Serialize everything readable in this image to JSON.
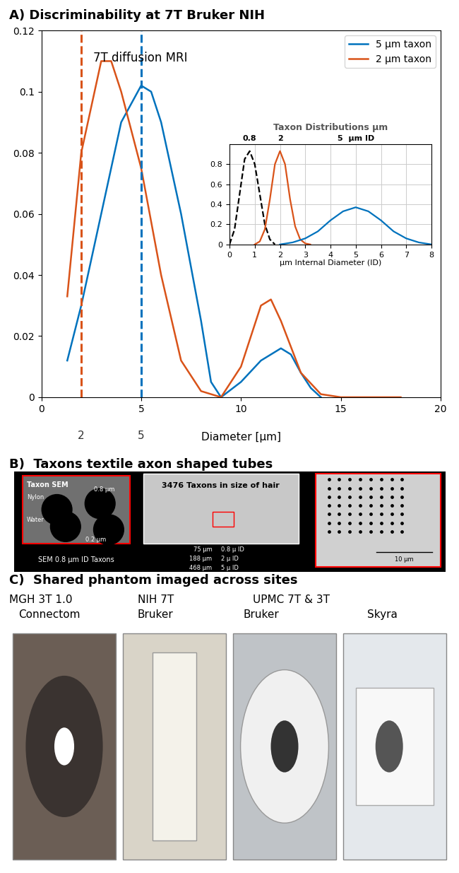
{
  "chart_data": [
    {
      "type": "line",
      "title": "A) Discriminability at 7T Bruker NIH",
      "annotation": "7T diffusion MRI",
      "x_label": "Diameter [μm]",
      "xlim": [
        0,
        20
      ],
      "ylim": [
        0,
        0.12
      ],
      "xticks": [
        0,
        5,
        10,
        15,
        20
      ],
      "yticks": [
        0,
        0.02,
        0.04,
        0.06,
        0.08,
        0.1,
        0.12
      ],
      "legend": "upper right",
      "reference_lines": [
        {
          "x": 2,
          "label": "2",
          "color": "#d95319"
        },
        {
          "x": 5,
          "label": "5",
          "color": "#0072bd"
        }
      ],
      "series": [
        {
          "name": "5 μm taxon",
          "color": "#0072bd",
          "x": [
            1.3,
            2,
            3,
            4,
            5,
            5.5,
            6,
            7,
            8,
            8.5,
            9,
            10,
            11,
            12,
            12.5,
            13,
            13.5,
            14
          ],
          "values": [
            0.012,
            0.03,
            0.06,
            0.09,
            0.102,
            0.1,
            0.09,
            0.06,
            0.025,
            0.005,
            0,
            0.005,
            0.012,
            0.016,
            0.014,
            0.008,
            0.003,
            0
          ]
        },
        {
          "name": "2 μm taxon",
          "color": "#d95319",
          "x": [
            1.3,
            2,
            2.5,
            3,
            3.5,
            4,
            5,
            6,
            7,
            8,
            9,
            10,
            11,
            11.5,
            12,
            13,
            14,
            15,
            18
          ],
          "values": [
            0.033,
            0.08,
            0.095,
            0.11,
            0.11,
            0.1,
            0.075,
            0.04,
            0.012,
            0.002,
            0,
            0.01,
            0.03,
            0.032,
            0.025,
            0.008,
            0.001,
            0,
            0
          ]
        }
      ]
    },
    {
      "type": "line",
      "title": "Taxon Distributions μm",
      "x_label": "μm Internal Diameter (ID)",
      "xlim": [
        0,
        8
      ],
      "ylim": [
        0,
        1
      ],
      "xticks": [
        0,
        1,
        2,
        3,
        4,
        5,
        6,
        7,
        8
      ],
      "yticks": [
        0,
        0.2,
        0.4,
        0.6,
        0.8
      ],
      "grid": true,
      "peak_labels": [
        {
          "x": 0.8,
          "label": "0.8"
        },
        {
          "x": 2,
          "label": "2"
        },
        {
          "x": 5,
          "label": "5  μm ID"
        }
      ],
      "series": [
        {
          "color": "#000000",
          "line_style": "dashed",
          "x": [
            0,
            0.2,
            0.4,
            0.6,
            0.8,
            1.0,
            1.2,
            1.4,
            1.6,
            1.8
          ],
          "values": [
            0,
            0.15,
            0.5,
            0.85,
            0.93,
            0.8,
            0.5,
            0.2,
            0.05,
            0
          ]
        },
        {
          "color": "#d95319",
          "line_style": "solid",
          "x": [
            1.0,
            1.2,
            1.4,
            1.6,
            1.8,
            2.0,
            2.2,
            2.4,
            2.6,
            2.8,
            3.0,
            3.2
          ],
          "values": [
            0,
            0.03,
            0.15,
            0.45,
            0.8,
            0.93,
            0.8,
            0.45,
            0.18,
            0.05,
            0.01,
            0
          ]
        },
        {
          "color": "#0072bd",
          "line_style": "solid",
          "x": [
            2,
            2.5,
            3,
            3.5,
            4,
            4.5,
            5,
            5.5,
            6,
            6.5,
            7,
            7.5,
            8
          ],
          "values": [
            0,
            0.02,
            0.06,
            0.13,
            0.24,
            0.33,
            0.37,
            0.33,
            0.24,
            0.13,
            0.06,
            0.02,
            0
          ]
        }
      ]
    }
  ],
  "panel_b": {
    "title": "B)  Taxons textile axon shaped tubes",
    "sem_inset": {
      "title": "Taxon SEM",
      "material": "Nylon",
      "fluid": "Water",
      "diameter": "0.8 μm",
      "wall": "0.2 μm",
      "caption": "SEM 0.8 μm ID Taxons"
    },
    "overview": {
      "label": "3476 Taxons in size of hair",
      "sizes": [
        {
          "width": "75 μm",
          "id": "0.8 μ ID"
        },
        {
          "width": "188 μm",
          "id": "2 μ ID"
        },
        {
          "width": "468 μm",
          "id": "5 μ ID"
        }
      ]
    },
    "zoom": {
      "scale_bar": "10 μm"
    }
  },
  "panel_c": {
    "title": "C)  Shared phantom imaged across sites",
    "label_rows": [
      [
        "MGH 3T 1.0",
        "NIH 7T",
        "UPMC 7T & 3T"
      ],
      [
        "Connectom",
        "Bruker",
        "Bruker",
        "Skyra"
      ]
    ]
  }
}
